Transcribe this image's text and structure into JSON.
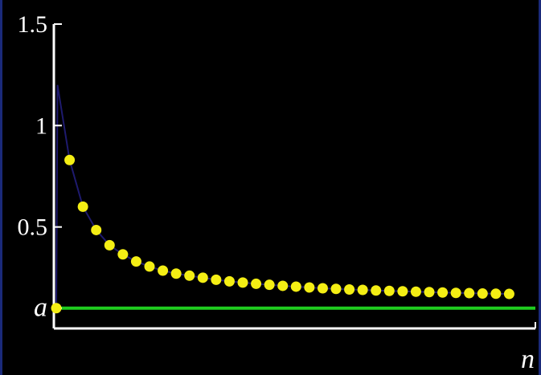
{
  "chart_data": {
    "type": "scatter",
    "xlabel": "n",
    "ylim": [
      0,
      1.5
    ],
    "xlim": [
      0,
      35
    ],
    "yticks": [
      {
        "value": 1.5,
        "label": "1.5"
      },
      {
        "value": 1,
        "label": "1"
      },
      {
        "value": 0.5,
        "label": "0.5"
      },
      {
        "value": 0.1,
        "label": "a"
      }
    ],
    "grid": false,
    "limit_line": {
      "value": 0.1,
      "color": "#1fcc1f"
    },
    "curve_color": "#1e1a6e",
    "point_color": "#f4ee14",
    "series": [
      {
        "values": [
          [
            0,
            0.1
          ],
          [
            1,
            0.83
          ],
          [
            2,
            0.6
          ],
          [
            3,
            0.485
          ],
          [
            4,
            0.41
          ],
          [
            5,
            0.365
          ],
          [
            6,
            0.33
          ],
          [
            7,
            0.305
          ],
          [
            8,
            0.285
          ],
          [
            9,
            0.27
          ],
          [
            10,
            0.26
          ],
          [
            11,
            0.25
          ],
          [
            12,
            0.24
          ],
          [
            13,
            0.232
          ],
          [
            14,
            0.226
          ],
          [
            15,
            0.22
          ],
          [
            16,
            0.215
          ],
          [
            17,
            0.21
          ],
          [
            18,
            0.206
          ],
          [
            19,
            0.202
          ],
          [
            20,
            0.198
          ],
          [
            21,
            0.195
          ],
          [
            22,
            0.192
          ],
          [
            23,
            0.19
          ],
          [
            24,
            0.187
          ],
          [
            25,
            0.185
          ],
          [
            26,
            0.183
          ],
          [
            27,
            0.181
          ],
          [
            28,
            0.179
          ],
          [
            29,
            0.177
          ],
          [
            30,
            0.175
          ],
          [
            31,
            0.174
          ],
          [
            32,
            0.172
          ],
          [
            33,
            0.171
          ],
          [
            34,
            0.17
          ]
        ]
      }
    ]
  }
}
